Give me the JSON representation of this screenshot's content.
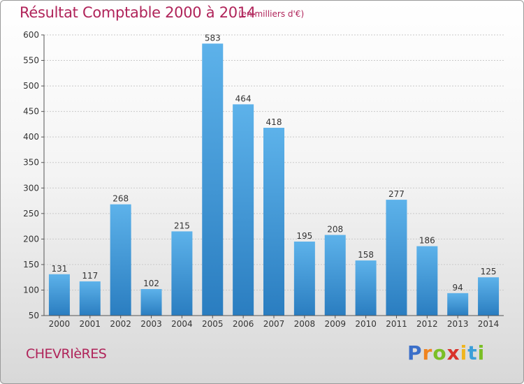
{
  "title": "Résultat Comptable 2000 à 2014",
  "unit": "(en milliers d'€)",
  "place": "CHEVRIèRES",
  "logo": {
    "letters": [
      "P",
      "r",
      "o",
      "x",
      "i",
      "t",
      "i"
    ]
  },
  "colors": {
    "title": "#b0245a",
    "bar_top": "#5db2ea",
    "bar_bottom": "#2a7dc0",
    "logo": [
      "#3b6fc9",
      "#f0841f",
      "#7bbf26",
      "#d9322a",
      "#f0b51f",
      "#3b9fd9",
      "#7bbf26"
    ]
  },
  "chart_data": {
    "type": "bar",
    "title": "Résultat Comptable 2000 à 2014",
    "subtitle": "(en milliers d'€)",
    "categories": [
      "2000",
      "2001",
      "2002",
      "2003",
      "2004",
      "2005",
      "2006",
      "2007",
      "2008",
      "2009",
      "2010",
      "2011",
      "2012",
      "2013",
      "2014"
    ],
    "values": [
      131,
      117,
      268,
      102,
      215,
      583,
      464,
      418,
      195,
      208,
      158,
      277,
      186,
      94,
      125
    ],
    "data_labels": [
      "131",
      "117",
      "268",
      "102",
      "215",
      "583",
      "464",
      "418",
      "195",
      "208",
      "158",
      "277",
      "186",
      "94",
      "125"
    ],
    "yticks": [
      "50",
      "100",
      "150",
      "200",
      "250",
      "300",
      "350",
      "400",
      "450",
      "500",
      "550",
      "600"
    ],
    "ylim": [
      50,
      600
    ],
    "grid": true,
    "legend": "none"
  }
}
